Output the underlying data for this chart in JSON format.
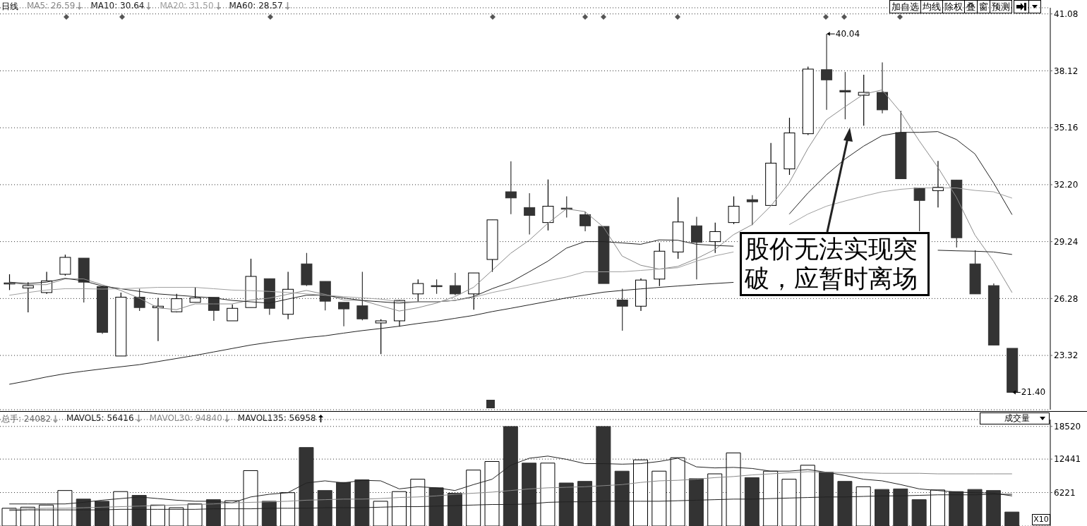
{
  "chart_data": [
    {
      "type": "candlestick",
      "categories": [
        null,
        null,
        null,
        null,
        null,
        null,
        null,
        null,
        null,
        null,
        null,
        null,
        null,
        null,
        null,
        null,
        null,
        null,
        null,
        null,
        null,
        null,
        null,
        null,
        null,
        null,
        null,
        null,
        null,
        null,
        null,
        null,
        null,
        null,
        null,
        null,
        null,
        null,
        null,
        null,
        null,
        null,
        null,
        null,
        null,
        null,
        null,
        null,
        null,
        null,
        null,
        null,
        null,
        null,
        null
      ],
      "ohlc": [
        [
          27.09,
          27.54,
          26.72,
          27.09
        ],
        [
          26.83,
          27.13,
          25.56,
          26.95
        ],
        [
          26.59,
          27.67,
          26.52,
          27.2
        ],
        [
          27.54,
          28.56,
          27.47,
          28.42
        ],
        [
          28.38,
          28.38,
          26.07,
          27.13
        ],
        [
          26.9,
          26.93,
          24.44,
          24.52
        ],
        [
          23.29,
          26.59,
          23.29,
          26.35
        ],
        [
          26.35,
          26.79,
          25.63,
          25.81
        ],
        [
          25.8,
          26.31,
          24.07,
          25.88
        ],
        [
          25.59,
          26.52,
          25.56,
          26.27
        ],
        [
          26.08,
          26.86,
          26.08,
          26.31
        ],
        [
          26.34,
          26.34,
          25.12,
          25.66
        ],
        [
          25.12,
          25.97,
          25.12,
          25.77
        ],
        [
          25.81,
          28.35,
          25.81,
          27.43
        ],
        [
          27.31,
          27.31,
          25.43,
          25.77
        ],
        [
          25.46,
          27.67,
          25.2,
          26.76
        ],
        [
          28.08,
          28.65,
          26.93,
          26.99
        ],
        [
          27.17,
          27.17,
          25.66,
          26.14
        ],
        [
          26.08,
          26.08,
          24.84,
          25.74
        ],
        [
          25.9,
          27.67,
          25.15,
          25.22
        ],
        [
          25.01,
          25.2,
          23.39,
          25.12
        ],
        [
          25.12,
          26.2,
          24.82,
          26.18
        ],
        [
          26.52,
          27.27,
          26.11,
          27.06
        ],
        [
          26.95,
          27.27,
          26.52,
          26.93
        ],
        [
          26.95,
          27.61,
          26.45,
          26.52
        ],
        [
          26.52,
          27.61,
          25.7,
          27.61
        ],
        [
          28.31,
          30.37,
          27.67,
          30.37
        ],
        [
          31.83,
          33.42,
          30.67,
          31.51
        ],
        [
          31.01,
          31.76,
          29.61,
          30.6
        ],
        [
          30.23,
          32.47,
          29.82,
          31.08
        ],
        [
          30.98,
          31.59,
          30.49,
          30.95
        ],
        [
          30.64,
          30.8,
          29.78,
          30.06
        ],
        [
          30.03,
          30.03,
          27.06,
          27.06
        ],
        [
          26.2,
          26.79,
          24.61,
          25.88
        ],
        [
          25.88,
          27.33,
          25.63,
          27.24
        ],
        [
          27.29,
          29.17,
          26.93,
          28.74
        ],
        [
          28.7,
          31.55,
          28.35,
          30.26
        ],
        [
          30.06,
          30.53,
          27.27,
          29.2
        ],
        [
          29.24,
          30.23,
          28.65,
          29.76
        ],
        [
          30.23,
          31.59,
          30.15,
          31.08
        ],
        [
          31.42,
          31.66,
          30.1,
          31.31
        ],
        [
          31.12,
          34.37,
          31.12,
          33.32
        ],
        [
          33.02,
          35.68,
          32.71,
          34.89
        ],
        [
          34.85,
          38.34,
          34.78,
          38.21
        ],
        [
          38.18,
          40.04,
          36.09,
          37.65
        ],
        [
          37.1,
          38.06,
          35.6,
          37.02
        ],
        [
          36.85,
          37.92,
          35.27,
          37.0
        ],
        [
          37.0,
          38.56,
          35.91,
          36.09
        ],
        [
          34.91,
          36.04,
          32.51,
          32.51
        ],
        [
          32.03,
          32.03,
          29.78,
          31.38
        ],
        [
          31.89,
          33.43,
          31.01,
          32.06
        ],
        [
          32.44,
          32.44,
          28.93,
          29.44
        ],
        [
          28.08,
          28.79,
          26.52,
          26.52
        ],
        [
          26.95,
          27.06,
          23.86,
          23.86
        ],
        [
          23.69,
          23.69,
          21.4,
          21.4
        ]
      ],
      "colors": [
        "#ffffff",
        "#ffffff",
        "#ffffff",
        "#ffffff",
        "#333333",
        "#333333",
        "#ffffff",
        "#333333",
        "#ffffff",
        "#ffffff",
        "#ffffff",
        "#333333",
        "#ffffff",
        "#ffffff",
        "#333333",
        "#ffffff",
        "#333333",
        "#333333",
        "#333333",
        "#333333",
        "#ffffff",
        "#ffffff",
        "#ffffff",
        "#333333",
        "#333333",
        "#ffffff",
        "#ffffff",
        "#333333",
        "#333333",
        "#ffffff",
        "#333333",
        "#333333",
        "#333333",
        "#333333",
        "#ffffff",
        "#ffffff",
        "#ffffff",
        "#333333",
        "#ffffff",
        "#ffffff",
        "#333333",
        "#ffffff",
        "#ffffff",
        "#ffffff",
        "#333333",
        "#333333",
        "#ffffff",
        "#333333",
        "#333333",
        "#333333",
        "#ffffff",
        "#333333",
        "#333333",
        "#333333",
        "#333333"
      ],
      "series": [
        {
          "type": "line",
          "color": "#8a8a8a",
          "values": [
            27.1,
            27.0,
            27.0,
            27.3,
            27.3,
            27.0,
            26.7,
            26.3,
            25.8,
            25.7,
            26.0,
            26.0,
            26.0,
            26.2,
            26.3,
            26.5,
            26.7,
            26.5,
            26.2,
            26.18,
            25.9,
            25.63,
            25.8,
            26.04,
            26.38,
            26.86,
            27.74,
            28.63,
            29.31,
            30.19,
            30.94,
            30.8,
            29.99,
            28.49,
            28.01,
            27.81,
            27.95,
            28.35,
            28.83,
            29.6,
            30.12,
            31.08,
            32.3,
            34.07,
            35.57,
            36.25,
            36.9,
            37.13,
            35.97,
            34.48,
            33.11,
            31.55,
            29.58,
            28.22,
            26.59
          ]
        },
        {
          "type": "line",
          "color": "#222222",
          "values": [
            27.13,
            27.06,
            27.13,
            27.33,
            27.2,
            26.93,
            26.79,
            26.65,
            26.52,
            26.45,
            26.38,
            26.31,
            26.18,
            26.11,
            26.04,
            26.25,
            26.45,
            26.45,
            26.31,
            26.18,
            26.11,
            26.04,
            26.11,
            26.11,
            26.18,
            26.38,
            26.79,
            27.13,
            27.67,
            28.22,
            28.9,
            29.24,
            29.24,
            29.17,
            29.1,
            29.33,
            29.31,
            29.1,
            29.04,
            29.0,
            null,
            null,
            30.67,
            31.76,
            32.71,
            33.53,
            34.2,
            34.75,
            34.92,
            34.92,
            34.96,
            34.55,
            33.8,
            32.3,
            30.64
          ]
        },
        {
          "type": "line",
          "color": "#a0a0a0",
          "values": [
            26.45,
            26.59,
            26.72,
            26.79,
            26.79,
            26.77,
            26.79,
            26.82,
            26.86,
            26.86,
            26.86,
            26.79,
            26.72,
            26.69,
            26.65,
            26.59,
            26.52,
            26.45,
            26.38,
            26.31,
            26.25,
            26.11,
            26.11,
            26.11,
            26.18,
            26.34,
            26.59,
            26.79,
            26.99,
            27.2,
            27.4,
            27.67,
            27.67,
            27.67,
            27.74,
            27.81,
            27.88,
            28.22,
            28.5,
            28.7,
            null,
            null,
            30.12,
            30.67,
            31.08,
            31.35,
            31.6,
            31.83,
            31.96,
            32.03,
            32.03,
            32.03,
            31.9,
            31.83,
            31.5
          ]
        },
        {
          "type": "line",
          "color": "#222222",
          "values": [
            21.82,
            22.0,
            22.2,
            22.37,
            22.5,
            22.62,
            22.73,
            22.84,
            23.0,
            23.16,
            23.32,
            23.5,
            23.68,
            23.86,
            24.0,
            24.12,
            24.25,
            24.34,
            24.48,
            24.61,
            24.72,
            24.84,
            24.98,
            25.1,
            25.25,
            25.4,
            25.6,
            25.77,
            25.95,
            26.13,
            26.31,
            26.46,
            26.61,
            26.7,
            26.78,
            26.86,
            26.93,
            27.0,
            27.06,
            27.12,
            null,
            null,
            null,
            null,
            null,
            null,
            null,
            null,
            null,
            null,
            28.79,
            28.76,
            28.74,
            28.7,
            28.57
          ]
        }
      ],
      "ylim": [
        20.5,
        41.4
      ],
      "yticks": [
        41.08,
        38.12,
        35.16,
        {
          "value": 32.2,
          "label": "32.20"
        },
        29.24,
        26.28,
        23.32
      ],
      "grid": "y",
      "tick_labels": "y",
      "annotations": [
        "日线",
        "MA5: 26.59",
        "MA10: 30.64",
        "MA20: 31.50",
        "MA60: 28.57",
        "40.04",
        "21.40",
        "股价无法实现突破，应暂时离场",
        "加自选",
        "均线",
        "除权",
        "叠",
        "窗",
        "预测"
      ]
    },
    {
      "type": "bar",
      "categories": [
        null,
        null,
        null,
        null,
        null,
        null,
        null,
        null,
        null,
        null,
        null,
        null,
        null,
        null,
        null,
        null,
        null,
        null,
        null,
        null,
        null,
        null,
        null,
        null,
        null,
        null,
        null,
        null,
        null,
        null,
        null,
        null,
        null,
        null,
        null,
        null,
        null,
        null,
        null,
        null,
        null,
        null,
        null,
        null,
        null,
        null,
        null,
        null,
        null,
        null,
        null,
        null,
        null,
        null,
        null
      ],
      "series": [
        {
          "type": "bar",
          "values": [
            3300,
            3500,
            3900,
            6600,
            5000,
            4600,
            6400,
            5700,
            3900,
            3400,
            4100,
            4900,
            4700,
            10300,
            4600,
            6200,
            14600,
            6600,
            8100,
            8600,
            4600,
            6400,
            8700,
            7100,
            6100,
            10400,
            12000,
            18500,
            11700,
            11700,
            8000,
            8300,
            18500,
            10200,
            12300,
            10200,
            12700,
            8800,
            9700,
            13600,
            9000,
            10200,
            8700,
            11300,
            10000,
            8300,
            7300,
            6800,
            6900,
            4900,
            6700,
            6400,
            6800,
            6600,
            2600
          ],
          "colors": [
            "#ffffff",
            "#ffffff",
            "#ffffff",
            "#ffffff",
            "#333333",
            "#333333",
            "#ffffff",
            "#333333",
            "#ffffff",
            "#ffffff",
            "#ffffff",
            "#333333",
            "#ffffff",
            "#ffffff",
            "#333333",
            "#ffffff",
            "#333333",
            "#333333",
            "#333333",
            "#333333",
            "#ffffff",
            "#ffffff",
            "#ffffff",
            "#333333",
            "#333333",
            "#ffffff",
            "#ffffff",
            "#333333",
            "#333333",
            "#ffffff",
            "#333333",
            "#333333",
            "#333333",
            "#333333",
            "#ffffff",
            "#ffffff",
            "#ffffff",
            "#333333",
            "#ffffff",
            "#ffffff",
            "#333333",
            "#ffffff",
            "#ffffff",
            "#ffffff",
            "#333333",
            "#333333",
            "#ffffff",
            "#333333",
            "#333333",
            "#333333",
            "#ffffff",
            "#333333",
            "#333333",
            "#333333",
            "#333333"
          ]
        },
        {
          "type": "line",
          "color": "#222222",
          "values": [
            4100,
            4100,
            4100,
            4100,
            4400,
            4800,
            5100,
            5400,
            5100,
            4800,
            4600,
            4600,
            4300,
            5400,
            5900,
            6200,
            8000,
            8400,
            8000,
            8500,
            8400,
            6900,
            7300,
            7100,
            6600,
            7700,
            8700,
            11300,
            12600,
            13000,
            12400,
            11600,
            11600,
            11500,
            11600,
            12000,
            12600,
            11000,
            10800,
            10900,
            10700,
            10200,
            10200,
            10500,
            10000,
            9400,
            8700,
            8400,
            7700,
            6900,
            6600,
            6300,
            6200,
            6100,
            5600
          ]
        },
        {
          "type": "line",
          "color": "#8a8a8a",
          "values": [
            3100,
            3200,
            3300,
            3300,
            3400,
            3500,
            3600,
            3700,
            3800,
            3900,
            4000,
            4100,
            4300,
            4400,
            4500,
            4600,
            4800,
            4900,
            5000,
            5000,
            5100,
            5300,
            5400,
            5600,
            5900,
            6100,
            6300,
            6600,
            6900,
            7100,
            7200,
            7300,
            7500,
            7700,
            8100,
            8400,
            8500,
            8700,
            9000,
            9200,
            9500,
            9700,
            9900,
            10100,
            10000,
            9900,
            9900,
            9800,
            9800,
            9800,
            9700,
            9700,
            9700,
            9700,
            9700
          ]
        },
        {
          "type": "line",
          "color": "#222222",
          "values": [
            2900,
            3000,
            3000,
            3000,
            3000,
            3000,
            3100,
            3100,
            3100,
            3100,
            3100,
            3200,
            3200,
            3200,
            3300,
            3300,
            3300,
            3400,
            3400,
            3400,
            3500,
            3600,
            3600,
            3700,
            3800,
            3900,
            4000,
            4000,
            4100,
            4400,
            4500,
            4500,
            4600,
            4600,
            4600,
            4600,
            4700,
            4800,
            4900,
            5000,
            5000,
            5100,
            5200,
            5300,
            5400,
            5400,
            5500,
            5600,
            5600,
            5700,
            5800,
            5800,
            5800,
            5900,
            5900
          ]
        }
      ],
      "ylim": [
        0,
        19800
      ],
      "yticks": [
        6221,
        12441,
        18520
      ],
      "grid": "y",
      "tick_labels": "y",
      "annotations": [
        "总手: 24082",
        "MAVOL5: 56416",
        "MAVOL30: 94840",
        "MAVOL135: 56958",
        "成交量",
        "X10"
      ]
    }
  ]
}
